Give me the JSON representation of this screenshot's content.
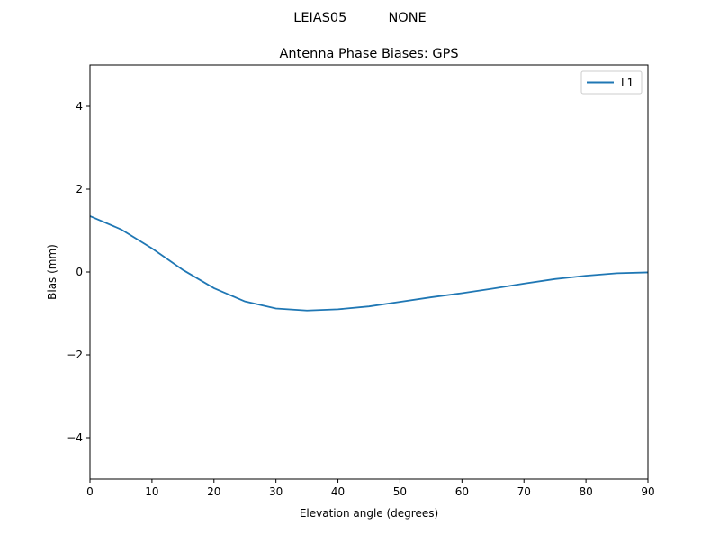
{
  "suptitle": "LEIAS05          NONE",
  "chart_data": {
    "type": "line",
    "title": "Antenna Phase Biases: GPS",
    "xlabel": "Elevation angle (degrees)",
    "ylabel": "Bias (mm)",
    "xlim": [
      0,
      90
    ],
    "ylim": [
      -5,
      5
    ],
    "xticks": [
      0,
      10,
      20,
      30,
      40,
      50,
      60,
      70,
      80,
      90
    ],
    "yticks": [
      -4,
      -2,
      0,
      2,
      4
    ],
    "ytick_labels": [
      "−4",
      "−2",
      "0",
      "2",
      "4"
    ],
    "grid": false,
    "legend": "top-right",
    "x": [
      0,
      5,
      10,
      15,
      20,
      25,
      30,
      35,
      40,
      45,
      50,
      55,
      60,
      65,
      70,
      75,
      80,
      85,
      90
    ],
    "series": [
      {
        "name": "L1",
        "color": "#1f77b4",
        "values": [
          1.35,
          1.03,
          0.57,
          0.05,
          -0.39,
          -0.71,
          -0.88,
          -0.93,
          -0.9,
          -0.83,
          -0.72,
          -0.61,
          -0.51,
          -0.4,
          -0.28,
          -0.17,
          -0.09,
          -0.03,
          -0.01
        ]
      }
    ]
  }
}
